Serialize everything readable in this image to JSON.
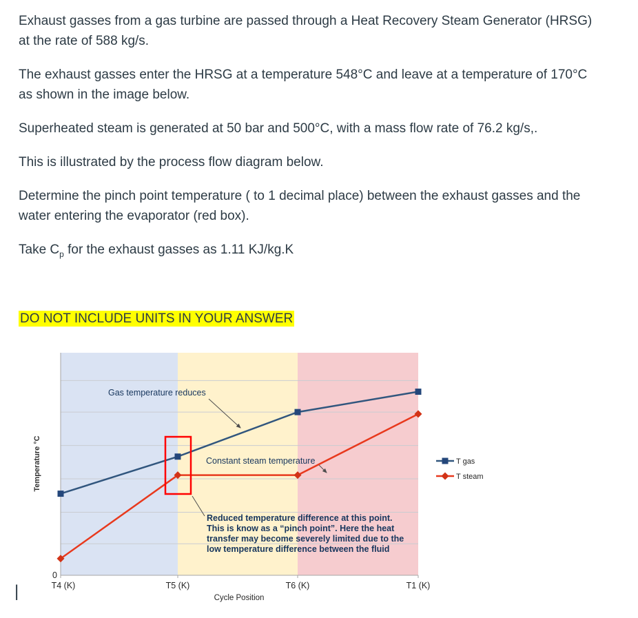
{
  "page": {
    "background": "#ffffff",
    "text_color": "#2d3b45",
    "cursor_glyph": "|"
  },
  "question": {
    "paragraphs": [
      "Exhaust gasses from a gas turbine are passed through a Heat Recovery Steam Generator (HRSG) at the rate of 588 kg/s.",
      "The exhaust gasses enter the HRSG at a temperature 548°C and leave at a temperature of 170°C as shown in the image below.",
      "Superheated steam is generated at 50 bar and 500°C, with a mass flow rate of 76.2 kg/s,.",
      "This is illustrated by the process flow diagram below.",
      "Determine the pinch point temperature ( to 1 decimal place) between the exhaust gasses and the water entering the evaporator (red box)."
    ],
    "cp_line": {
      "prefix": "Take C",
      "sub": "p",
      "suffix": " for the exhaust gasses as 1.11 KJ/kg.K"
    },
    "warning": {
      "text": "DO NOT INCLUDE UNITS IN YOUR ANSWER",
      "highlight_color": "#ffff00"
    }
  },
  "chart_data": {
    "type": "line",
    "title": "",
    "xlabel": "Cycle Position",
    "ylabel": "Temperature °C",
    "x_categories": [
      "T4 (K)",
      "T5 (K)",
      "T6 (K)",
      "T1 (K)"
    ],
    "y_origin_label": "0",
    "ylim": [
      0,
      600
    ],
    "gridline_values": [
      85,
      170,
      260,
      350,
      440,
      525
    ],
    "series": [
      {
        "name": "T gas",
        "color": "#31567e",
        "marker_color": "#24477b",
        "marker": "square",
        "values": [
          220,
          320,
          440,
          495
        ]
      },
      {
        "name": "T steam",
        "color": "#e8391d",
        "marker_color": "#d23317",
        "marker": "diamond",
        "values": [
          45,
          270,
          270,
          435
        ]
      }
    ],
    "regions": [
      {
        "color": "#dae3f3"
      },
      {
        "color": "#fff2cc"
      },
      {
        "color": "#f6cccf"
      }
    ],
    "annotations": {
      "gas_label": "Gas temperature reduces",
      "steam_label": "Constant steam temperature",
      "pinch_note_lines": [
        "Reduced temperature difference at this point.",
        "This is know as a “pinch point”. Here the heat",
        "transfer may become severely limited due to the",
        "low temperature difference between the fluid"
      ]
    },
    "pinch_box_color": "#ff0000",
    "legend_position": "right"
  }
}
